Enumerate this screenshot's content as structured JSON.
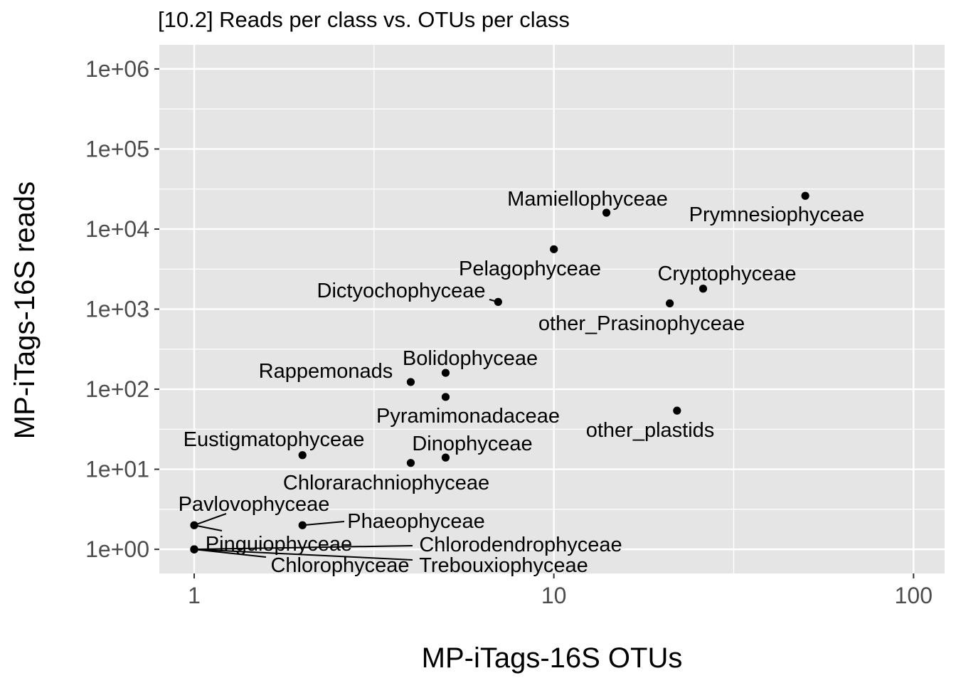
{
  "chart_data": {
    "type": "scatter",
    "title": "[10.2] Reads per class vs. OTUs per class",
    "xlabel": "MP-iTags-16S OTUs",
    "ylabel": "MP-iTags-16S reads",
    "x_scale": "log10",
    "y_scale": "log10",
    "xlim": [
      0.8,
      122
    ],
    "ylim": [
      0.5,
      2000000
    ],
    "x_ticks": [
      {
        "value": 1,
        "label": "1"
      },
      {
        "value": 10,
        "label": "10"
      },
      {
        "value": 100,
        "label": "100"
      }
    ],
    "y_ticks": [
      {
        "value": 1,
        "label": "1e+00"
      },
      {
        "value": 10,
        "label": "1e+01"
      },
      {
        "value": 100,
        "label": "1e+02"
      },
      {
        "value": 1000,
        "label": "1e+03"
      },
      {
        "value": 10000,
        "label": "1e+04"
      },
      {
        "value": 100000,
        "label": "1e+05"
      },
      {
        "value": 1000000,
        "label": "1e+06"
      }
    ],
    "grid": true,
    "background_color": "#e5e5e5",
    "grid_color": "#ffffff",
    "point_color": "#000000",
    "points": [
      {
        "label": "Prymnesiophyceae",
        "x": 50,
        "y": 26000
      },
      {
        "label": "Mamiellophyceae",
        "x": 14,
        "y": 16000
      },
      {
        "label": "Pelagophyceae",
        "x": 10,
        "y": 5600
      },
      {
        "label": "Cryptophyceae",
        "x": 26,
        "y": 1800
      },
      {
        "label": "other_Prasinophyceae",
        "x": 21,
        "y": 1180
      },
      {
        "label": "Dictyochophyceae",
        "x": 7,
        "y": 1230
      },
      {
        "label": "Bolidophyceae",
        "x": 5,
        "y": 160
      },
      {
        "label": "Rappemonads",
        "x": 4,
        "y": 123
      },
      {
        "label": "Pyramimonadaceae",
        "x": 5,
        "y": 80
      },
      {
        "label": "other_plastids",
        "x": 22,
        "y": 54
      },
      {
        "label": "Eustigmatophyceae",
        "x": 2,
        "y": 15
      },
      {
        "label": "Dinophyceae",
        "x": 5,
        "y": 14
      },
      {
        "label": "Chlorarachniophyceae",
        "x": 4,
        "y": 12
      },
      {
        "label": "Pavlovophyceae",
        "x": 1,
        "y": 2
      },
      {
        "label": "Phaeophyceae",
        "x": 2,
        "y": 2
      },
      {
        "label": "Pinguiophyceae",
        "x": 1,
        "y": 1
      },
      {
        "label": "Chlorodendrophyceae",
        "x": 1,
        "y": 1
      },
      {
        "label": "Chlorophyceae",
        "x": 1,
        "y": 1
      },
      {
        "label": "Trebouxiophyceae",
        "x": 1,
        "y": 1
      }
    ]
  }
}
